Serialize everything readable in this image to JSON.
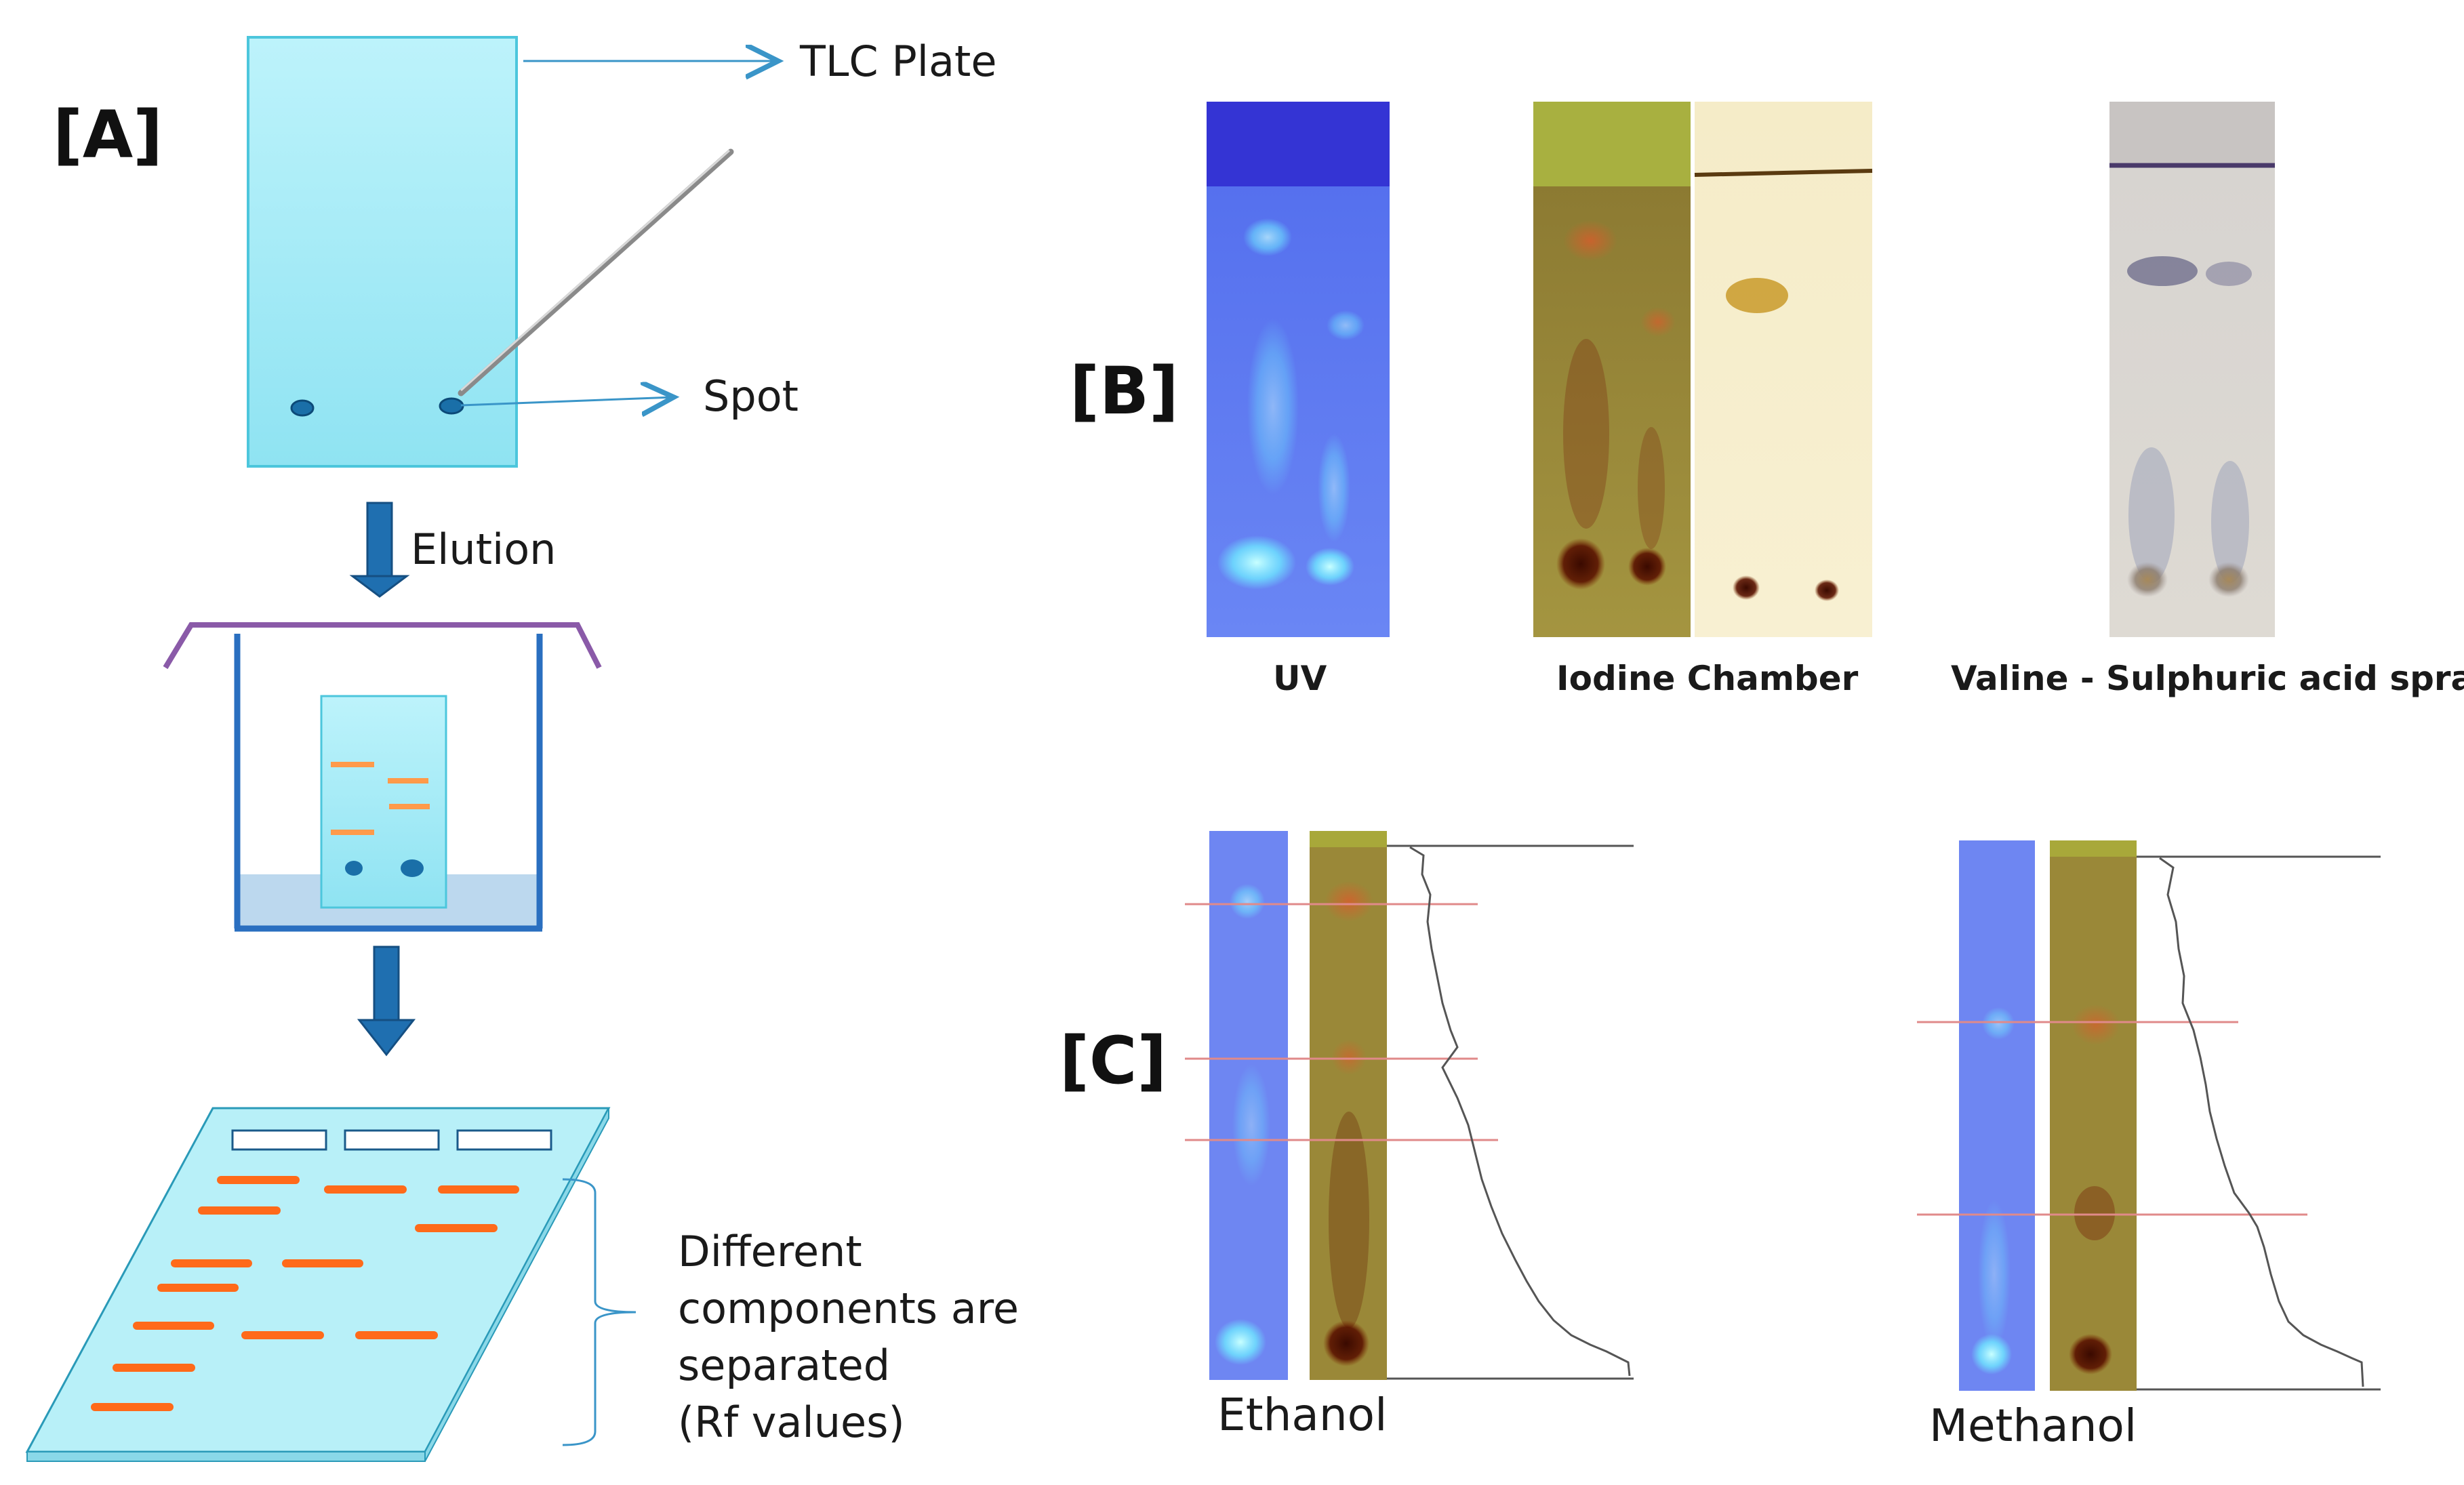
{
  "panel_a": {
    "label": "[A]",
    "tlc_plate_label": "TLC Plate",
    "spot_label": "Spot",
    "elution_label": "Elution",
    "result_text": [
      "Different",
      "components are",
      "separated",
      "(Rf values)"
    ]
  },
  "panel_b": {
    "label": "[B]",
    "captions": {
      "uv": "UV",
      "iodine": "Iodine Chamber",
      "valine": "Valine - Sulphuric acid spray"
    }
  },
  "panel_c": {
    "label": "[C]",
    "ethanol": "Ethanol",
    "methanol": "Methanol"
  },
  "colors": {
    "plate_blue": "#b8f0f8",
    "band_orange": "#ff6a1a",
    "arrow_blue": "#1f6fb0",
    "uv_blue": "#5a6cf0",
    "iodine_olive": "#8a7a2e",
    "profile_line": "#555555",
    "rf_line": "#e08a8a"
  }
}
